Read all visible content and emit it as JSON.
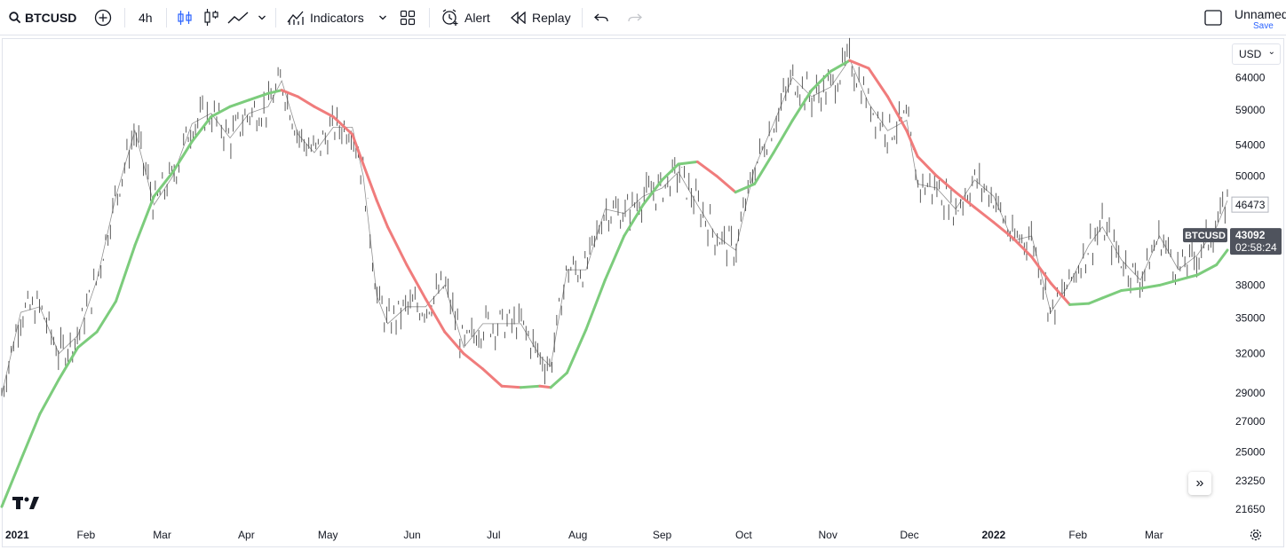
{
  "toolbar": {
    "symbol": "BTCUSD",
    "interval": "4h",
    "indicators_label": "Indicators",
    "alert_label": "Alert",
    "replay_label": "Replay",
    "layout_name": "Unnamed",
    "save_label": "Save",
    "icons": [
      "search-icon",
      "add-symbol-icon",
      "bar-style-icon",
      "candles-icon",
      "line-chart-icon",
      "chevron-down-icon",
      "indicators-icon",
      "layout-grid-icon",
      "alert-clock-icon",
      "replay-icon",
      "undo-icon",
      "redo-icon",
      "fullscreen-icon"
    ]
  },
  "currency_selector": "USD",
  "price_scale": {
    "labels": [
      "64000",
      "59000",
      "54000",
      "50000",
      "46473",
      "38000",
      "35000",
      "32000",
      "29000",
      "27000",
      "25000",
      "23250",
      "21650"
    ],
    "last_price": "43092",
    "countdown": "02:58:24",
    "symbol_tag": "BTCUSD",
    "marker_price": "46473"
  },
  "time_axis": {
    "labels": [
      "2021",
      "Feb",
      "Mar",
      "Apr",
      "May",
      "Jun",
      "Jul",
      "Aug",
      "Sep",
      "Oct",
      "Nov",
      "Dec",
      "2022",
      "Feb",
      "Mar"
    ]
  },
  "colors": {
    "ma_up": "#7ccc7c",
    "ma_down": "#f07c7c",
    "price_line": "#4a4a4a",
    "tag_bg": "#4f535d"
  },
  "chart_data": {
    "type": "line",
    "title": "",
    "xlabel": "",
    "ylabel": "",
    "y_scale": "log",
    "ylim": [
      20900,
      70500
    ],
    "x": [
      "2021-01-01",
      "2021-01-08",
      "2021-01-15",
      "2021-01-22",
      "2021-01-29",
      "2021-02-05",
      "2021-02-12",
      "2021-02-19",
      "2021-02-26",
      "2021-03-05",
      "2021-03-12",
      "2021-03-19",
      "2021-03-26",
      "2021-04-02",
      "2021-04-09",
      "2021-04-14",
      "2021-04-20",
      "2021-04-26",
      "2021-05-03",
      "2021-05-10",
      "2021-05-14",
      "2021-05-19",
      "2021-05-23",
      "2021-05-30",
      "2021-06-06",
      "2021-06-13",
      "2021-06-20",
      "2021-06-27",
      "2021-07-04",
      "2021-07-11",
      "2021-07-18",
      "2021-07-22",
      "2021-07-28",
      "2021-08-04",
      "2021-08-11",
      "2021-08-18",
      "2021-08-25",
      "2021-09-01",
      "2021-09-07",
      "2021-09-14",
      "2021-09-21",
      "2021-09-28",
      "2021-10-05",
      "2021-10-12",
      "2021-10-19",
      "2021-10-26",
      "2021-11-02",
      "2021-11-09",
      "2021-11-16",
      "2021-11-23",
      "2021-11-30",
      "2021-12-04",
      "2021-12-11",
      "2021-12-18",
      "2021-12-25",
      "2022-01-01",
      "2022-01-08",
      "2022-01-15",
      "2022-01-22",
      "2022-01-29",
      "2022-02-05",
      "2022-02-10",
      "2022-02-17",
      "2022-02-24",
      "2022-03-03",
      "2022-03-10",
      "2022-03-17",
      "2022-03-24",
      "2022-03-28"
    ],
    "series": [
      {
        "values": [
          28900,
          35500,
          36000,
          32000,
          33500,
          38500,
          47500,
          56000,
          46500,
          50000,
          57000,
          58500,
          55000,
          58500,
          59500,
          63500,
          55500,
          53000,
          56500,
          56500,
          50000,
          37000,
          34500,
          36000,
          36000,
          38000,
          32500,
          34500,
          34500,
          34500,
          31800,
          31000,
          39500,
          39500,
          46000,
          45500,
          47500,
          48500,
          50500,
          46500,
          43000,
          41500,
          51000,
          57000,
          64000,
          61000,
          62500,
          67000,
          60000,
          56000,
          57500,
          49000,
          48500,
          46000,
          49500,
          47500,
          42500,
          43000,
          35500,
          38200,
          42000,
          44000,
          40500,
          38500,
          43000,
          39500,
          41000,
          44000,
          47000
        ]
      },
      {
        "values": [
          21800,
          24500,
          27500,
          30000,
          32500,
          33800,
          36500,
          42000,
          47500,
          50500,
          54500,
          58000,
          59500,
          60500,
          61500,
          62000,
          61000,
          59500,
          58000,
          55500,
          51500,
          47000,
          44000,
          40000,
          36700,
          33800,
          32000,
          30800,
          29500,
          29400,
          29500,
          29400,
          30500,
          34000,
          38500,
          43000,
          46500,
          49500,
          51500,
          51800,
          50000,
          48000,
          49000,
          53000,
          57500,
          62000,
          65000,
          66800,
          65500,
          61000,
          56000,
          52500,
          50000,
          48000,
          46200,
          44500,
          42800,
          40800,
          38200,
          36200,
          36300,
          36800,
          37500,
          37700,
          38000,
          38500,
          39000,
          40000,
          41500
        ]
      }
    ]
  }
}
